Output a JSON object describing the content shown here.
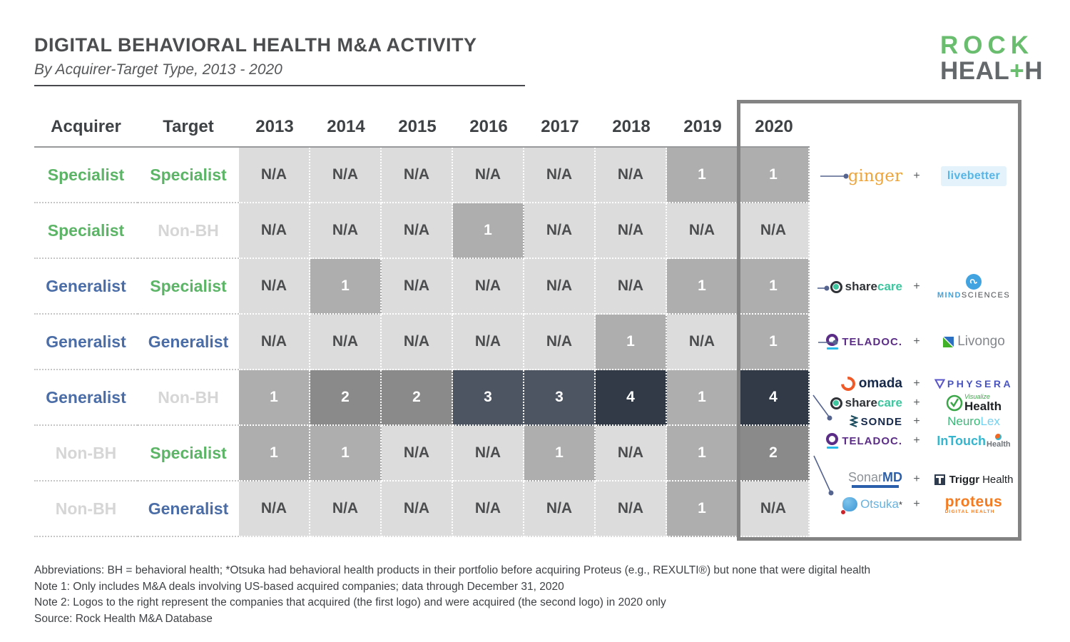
{
  "header": {
    "title": "DIGITAL BEHAVIORAL HEALTH M&A ACTIVITY",
    "subtitle": "By Acquirer-Target Type, 2013 - 2020"
  },
  "rock_logo": {
    "line1": "ROCK",
    "line2_pre": "HEAL",
    "line2_plus": "+",
    "line2_post": "H"
  },
  "chart_data": {
    "type": "heatmap",
    "title": "Digital Behavioral Health M&A Activity by Acquirer-Target Type, 2013 - 2020",
    "row_header_labels": [
      "Acquirer",
      "Target"
    ],
    "columns": [
      "2013",
      "2014",
      "2015",
      "2016",
      "2017",
      "2018",
      "2019",
      "2020"
    ],
    "rows": [
      {
        "acquirer": "Specialist",
        "acquirer_type": "specialist",
        "target": "Specialist",
        "target_type": "specialist",
        "values": [
          "N/A",
          "N/A",
          "N/A",
          "N/A",
          "N/A",
          "N/A",
          "1",
          "1"
        ]
      },
      {
        "acquirer": "Specialist",
        "acquirer_type": "specialist",
        "target": "Non-BH",
        "target_type": "nonbh",
        "values": [
          "N/A",
          "N/A",
          "N/A",
          "1",
          "N/A",
          "N/A",
          "N/A",
          "N/A"
        ]
      },
      {
        "acquirer": "Generalist",
        "acquirer_type": "generalist",
        "target": "Specialist",
        "target_type": "specialist",
        "values": [
          "N/A",
          "1",
          "N/A",
          "N/A",
          "N/A",
          "N/A",
          "1",
          "1"
        ]
      },
      {
        "acquirer": "Generalist",
        "acquirer_type": "generalist",
        "target": "Generalist",
        "target_type": "generalist",
        "values": [
          "N/A",
          "N/A",
          "N/A",
          "N/A",
          "N/A",
          "1",
          "N/A",
          "1"
        ]
      },
      {
        "acquirer": "Generalist",
        "acquirer_type": "generalist",
        "target": "Non-BH",
        "target_type": "nonbh",
        "values": [
          "1",
          "2",
          "2",
          "3",
          "3",
          "4",
          "1",
          "4"
        ]
      },
      {
        "acquirer": "Non-BH",
        "acquirer_type": "nonbh",
        "target": "Specialist",
        "target_type": "specialist",
        "values": [
          "1",
          "1",
          "N/A",
          "N/A",
          "1",
          "N/A",
          "1",
          "2"
        ]
      },
      {
        "acquirer": "Non-BH",
        "acquirer_type": "nonbh",
        "target": "Generalist",
        "target_type": "generalist",
        "values": [
          "N/A",
          "N/A",
          "N/A",
          "N/A",
          "N/A",
          "N/A",
          "1",
          "N/A"
        ]
      }
    ],
    "highlight_column": "2020",
    "legend_note": "cell shading darkens with deal count (N/A, 1, 2, 3, 4)"
  },
  "acquisitions_2020": [
    {
      "row": "Specialist-Specialist",
      "acquirer": "ginger",
      "acquired": "livebetter"
    },
    {
      "row": "Generalist-Specialist",
      "acquirer": "sharecare",
      "acquired": "MindSciences"
    },
    {
      "row": "Generalist-Generalist",
      "acquirer": "Teladoc",
      "acquired": "Livongo"
    },
    {
      "row": "Generalist-Non-BH",
      "acquirer": "omada",
      "acquired": "Physera"
    },
    {
      "row": "Generalist-Non-BH",
      "acquirer": "sharecare",
      "acquired": "Visualize Health"
    },
    {
      "row": "Generalist-Non-BH",
      "acquirer": "Sonde",
      "acquired": "NeuroLex"
    },
    {
      "row": "Generalist-Non-BH",
      "acquirer": "Teladoc",
      "acquired": "InTouch Health"
    },
    {
      "row": "Non-BH-Specialist",
      "acquirer": "SonarMD",
      "acquired": "Triggr Health"
    },
    {
      "row": "Non-BH-Specialist",
      "acquirer": "Otsuka*",
      "acquired": "Proteus Digital Health"
    }
  ],
  "logos": {
    "plus": "+",
    "ginger": "ginger",
    "livebetter": "livebetter",
    "sharecare_share": "share",
    "sharecare_care": "care",
    "mind": "MIND",
    "sciences": "SCIENCES",
    "teladoc": "TELADOC.",
    "livongo": "Livongo",
    "omada": "omada",
    "physera": "PHYSERA",
    "visualize": "Visualize",
    "visualize_health": "Health",
    "sonde": "SONDE",
    "neuro": "Neuro",
    "lex": "Lex",
    "intouch": "InTouch",
    "intouch_health": "Health",
    "sonar": "Sonar",
    "sonar_md": "MD",
    "triggr": "Triggr",
    "triggr_health": "Health",
    "otsuka": "Otsuka",
    "otsuka_star": "*",
    "proteus": "proteus",
    "proteus_sub": "DIGITAL HEALTH"
  },
  "footnotes": [
    "Abbreviations: BH = behavioral health; *Otsuka had behavioral health products in their portfolio before acquiring Proteus (e.g., REXULTI®) but none that were digital health",
    "Note 1: Only includes M&A deals involving US-based acquired companies; data through December 31, 2020",
    "Note 2: Logos to the right represent the companies that acquired (the first logo) and were acquired (the second logo) in 2020 only",
    "Source: Rock Health M&A Database"
  ],
  "colors": {
    "cell_na": "#dcdcdc",
    "cell_1": "#aeaeae",
    "cell_2": "#8a8a8a",
    "cell_3": "#4d5563",
    "cell_4": "#323a48",
    "specialist": "#5cb567",
    "generalist": "#4a6da7",
    "non_bh": "#d6d6d6",
    "rock_green": "#6abd6e",
    "rock_gray": "#64686b",
    "box_border": "#838383",
    "connector": "#55648f"
  }
}
